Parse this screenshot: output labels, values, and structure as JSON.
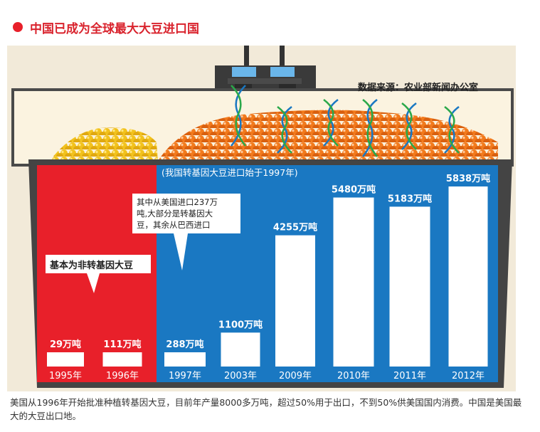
{
  "title": "中国已成为全球最大大豆进口国",
  "source": "数据来源：农业部新闻办公室",
  "notes": {
    "gm_start": "(我国转基因大豆进口始于1997年)",
    "non_gm": "基本为非转基因大豆",
    "us_import": [
      "其中从美国进口237万",
      "吨,大部分是转基因大",
      "豆，其余从巴西进口"
    ]
  },
  "caption": "美国从1996年开始批准种植转基因大豆，目前年产量8000多万吨，超过50%用于出口，不到50%供美国国内消费。中国是美国最大的大豆出口地。",
  "colors": {
    "title_dot": "#e8202a",
    "title_text": "#d9232d",
    "red_panel": "#e8202a",
    "blue_panel": "#1a78c2",
    "bars": "#ffffff",
    "frame": "#4a4a4a",
    "background": "#f2ead9",
    "soy_yellow": "#f2c21c",
    "soy_orange": "#f27a1c"
  },
  "chart_data": {
    "type": "bar",
    "categories": [
      "1995年",
      "1996年",
      "1997年",
      "2003年",
      "2009年",
      "2010年",
      "2011年",
      "2012年"
    ],
    "values": [
      29,
      111,
      288,
      1100,
      4255,
      5480,
      5183,
      5838
    ],
    "value_labels": [
      "29万吨",
      "111万吨",
      "288万吨",
      "1100万吨",
      "4255万吨",
      "5480万吨",
      "5183万吨",
      "5838万吨"
    ],
    "unit": "万吨",
    "ylim": [
      0,
      6000
    ]
  }
}
